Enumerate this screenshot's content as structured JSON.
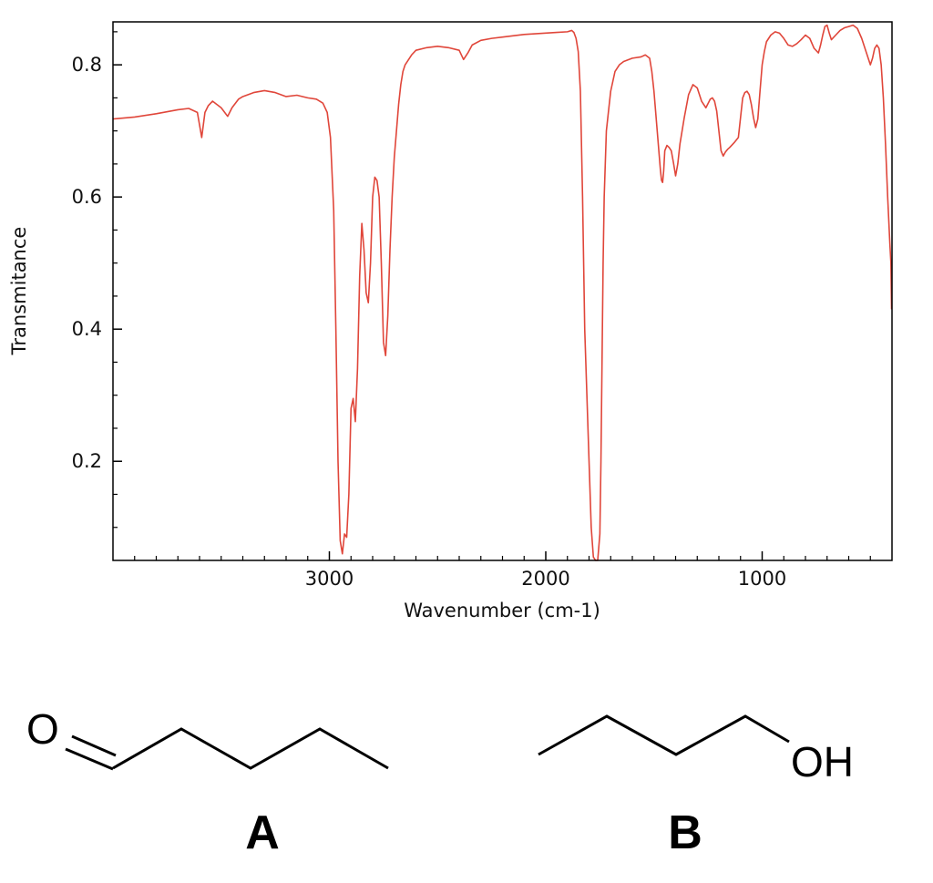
{
  "chart_data": {
    "type": "line",
    "xlabel": "Wavenumber (cm-1)",
    "ylabel": "Transmitance",
    "xlim": [
      4000,
      400
    ],
    "ylim": [
      0.05,
      0.865
    ],
    "xticks": [
      3000,
      2000,
      1000
    ],
    "yticks": [
      0.8,
      0.6,
      0.4,
      0.2
    ],
    "xtick_labels": [
      "3000",
      "2000",
      "1000"
    ],
    "ytick_labels": [
      "0.8",
      "0.6",
      "0.4",
      "0.2"
    ],
    "line_color": "#e0463a",
    "series": [
      {
        "x": [
          4000,
          3900,
          3800,
          3700,
          3650,
          3610,
          3590,
          3575,
          3560,
          3540,
          3500,
          3470,
          3450,
          3420,
          3400,
          3350,
          3300,
          3250,
          3200,
          3150,
          3100,
          3060,
          3030,
          3010,
          2995,
          2980,
          2970,
          2960,
          2950,
          2940,
          2930,
          2920,
          2910,
          2900,
          2890,
          2880,
          2870,
          2860,
          2850,
          2840,
          2830,
          2820,
          2810,
          2800,
          2790,
          2780,
          2770,
          2760,
          2750,
          2740,
          2730,
          2720,
          2710,
          2700,
          2690,
          2680,
          2670,
          2660,
          2650,
          2620,
          2600,
          2550,
          2500,
          2450,
          2400,
          2380,
          2360,
          2340,
          2300,
          2250,
          2200,
          2100,
          2000,
          1950,
          1900,
          1880,
          1870,
          1860,
          1850,
          1840,
          1830,
          1820,
          1800,
          1790,
          1780,
          1770,
          1760,
          1750,
          1745,
          1740,
          1735,
          1730,
          1720,
          1700,
          1680,
          1660,
          1640,
          1600,
          1560,
          1540,
          1520,
          1510,
          1500,
          1490,
          1480,
          1470,
          1465,
          1460,
          1455,
          1450,
          1440,
          1430,
          1420,
          1410,
          1400,
          1390,
          1380,
          1370,
          1360,
          1340,
          1320,
          1300,
          1280,
          1260,
          1240,
          1230,
          1220,
          1210,
          1200,
          1190,
          1180,
          1170,
          1160,
          1150,
          1130,
          1110,
          1100,
          1090,
          1080,
          1070,
          1060,
          1050,
          1040,
          1030,
          1020,
          1010,
          1000,
          990,
          980,
          960,
          940,
          920,
          900,
          880,
          860,
          840,
          820,
          800,
          780,
          760,
          740,
          730,
          720,
          710,
          700,
          690,
          680,
          660,
          640,
          620,
          600,
          580,
          560,
          540,
          520,
          500,
          490,
          480,
          470,
          460,
          450,
          440,
          430,
          420,
          410,
          405,
          402
        ],
        "y": [
          0.718,
          0.721,
          0.726,
          0.732,
          0.734,
          0.728,
          0.69,
          0.728,
          0.738,
          0.745,
          0.735,
          0.722,
          0.735,
          0.748,
          0.752,
          0.758,
          0.761,
          0.758,
          0.752,
          0.754,
          0.75,
          0.748,
          0.742,
          0.728,
          0.69,
          0.58,
          0.4,
          0.2,
          0.08,
          0.06,
          0.09,
          0.085,
          0.15,
          0.28,
          0.295,
          0.26,
          0.34,
          0.48,
          0.56,
          0.52,
          0.455,
          0.44,
          0.5,
          0.6,
          0.63,
          0.625,
          0.6,
          0.5,
          0.38,
          0.36,
          0.42,
          0.52,
          0.6,
          0.66,
          0.7,
          0.74,
          0.77,
          0.79,
          0.8,
          0.815,
          0.822,
          0.826,
          0.828,
          0.826,
          0.822,
          0.808,
          0.818,
          0.83,
          0.837,
          0.84,
          0.842,
          0.846,
          0.848,
          0.849,
          0.85,
          0.852,
          0.849,
          0.84,
          0.82,
          0.76,
          0.6,
          0.4,
          0.2,
          0.1,
          0.055,
          0.05,
          0.05,
          0.09,
          0.2,
          0.35,
          0.5,
          0.6,
          0.7,
          0.76,
          0.79,
          0.8,
          0.805,
          0.81,
          0.812,
          0.815,
          0.81,
          0.79,
          0.76,
          0.72,
          0.68,
          0.64,
          0.625,
          0.622,
          0.64,
          0.67,
          0.678,
          0.675,
          0.67,
          0.652,
          0.632,
          0.65,
          0.68,
          0.7,
          0.72,
          0.755,
          0.77,
          0.765,
          0.745,
          0.735,
          0.748,
          0.75,
          0.745,
          0.73,
          0.7,
          0.67,
          0.662,
          0.668,
          0.672,
          0.675,
          0.682,
          0.69,
          0.72,
          0.75,
          0.758,
          0.76,
          0.755,
          0.74,
          0.72,
          0.705,
          0.718,
          0.76,
          0.8,
          0.82,
          0.835,
          0.845,
          0.85,
          0.848,
          0.84,
          0.83,
          0.828,
          0.832,
          0.838,
          0.845,
          0.84,
          0.825,
          0.818,
          0.83,
          0.845,
          0.858,
          0.86,
          0.848,
          0.838,
          0.845,
          0.852,
          0.856,
          0.858,
          0.86,
          0.855,
          0.84,
          0.82,
          0.8,
          0.81,
          0.825,
          0.83,
          0.825,
          0.8,
          0.75,
          0.68,
          0.6,
          0.53,
          0.5,
          0.43
        ]
      }
    ]
  },
  "molecules": {
    "a": {
      "atom_label": "O",
      "compound_label": "A"
    },
    "b": {
      "atom_label": "OH",
      "compound_label": "B"
    }
  }
}
